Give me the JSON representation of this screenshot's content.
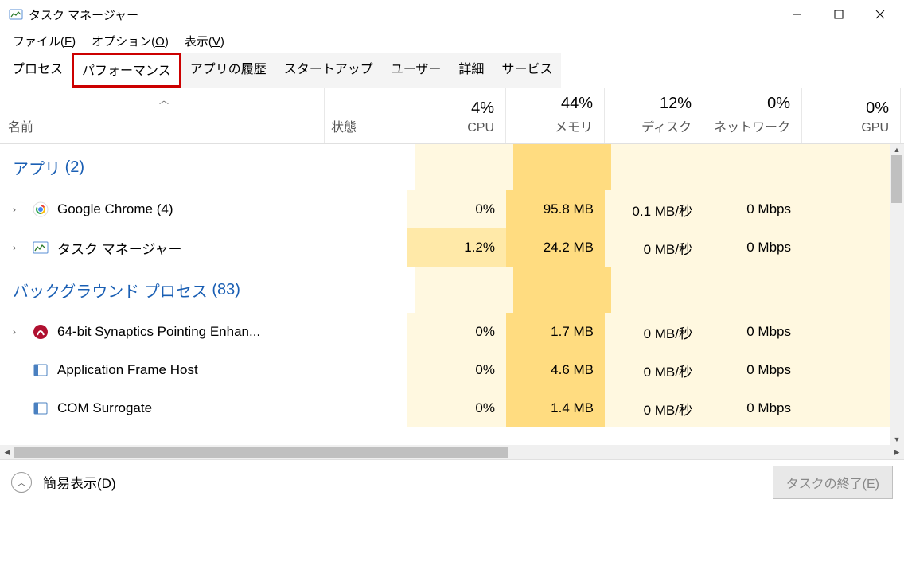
{
  "window": {
    "title": "タスク マネージャー"
  },
  "menu": {
    "file": "ファイル(",
    "file_u": "F",
    "file_end": ")",
    "options": "オプション(",
    "options_u": "O",
    "options_end": ")",
    "view": "表示(",
    "view_u": "V",
    "view_end": ")"
  },
  "tabs": {
    "items": [
      {
        "label": "プロセス",
        "active": true
      },
      {
        "label": "パフォーマンス",
        "highlighted": true
      },
      {
        "label": "アプリの履歴"
      },
      {
        "label": "スタートアップ"
      },
      {
        "label": "ユーザー"
      },
      {
        "label": "詳細"
      },
      {
        "label": "サービス"
      }
    ]
  },
  "columns": {
    "name": "名前",
    "status": "状態",
    "metrics": [
      {
        "pct": "4%",
        "label": "CPU"
      },
      {
        "pct": "44%",
        "label": "メモリ"
      },
      {
        "pct": "12%",
        "label": "ディスク"
      },
      {
        "pct": "0%",
        "label": "ネットワーク"
      },
      {
        "pct": "0%",
        "label": "GPU"
      }
    ]
  },
  "groups": [
    {
      "title": "アプリ",
      "count": "(2)",
      "rows": [
        {
          "expandable": true,
          "icon": "chrome",
          "name": "Google Chrome (4)",
          "metrics": [
            {
              "v": "0%",
              "heat": "heat-low"
            },
            {
              "v": "95.8 MB",
              "heat": "heat-high"
            },
            {
              "v": "0.1 MB/秒",
              "heat": "heat-low"
            },
            {
              "v": "0 Mbps",
              "heat": "heat-low"
            },
            {
              "v": "",
              "heat": "heat-low"
            }
          ]
        },
        {
          "expandable": true,
          "icon": "taskmgr",
          "name": "タスク マネージャー",
          "metrics": [
            {
              "v": "1.2%",
              "heat": "heat-med"
            },
            {
              "v": "24.2 MB",
              "heat": "heat-high"
            },
            {
              "v": "0 MB/秒",
              "heat": "heat-low"
            },
            {
              "v": "0 Mbps",
              "heat": "heat-low"
            },
            {
              "v": "",
              "heat": "heat-low"
            }
          ]
        }
      ]
    },
    {
      "title": "バックグラウンド プロセス",
      "count": "(83)",
      "rows": [
        {
          "expandable": true,
          "icon": "synaptics",
          "name": "64-bit Synaptics Pointing Enhan...",
          "metrics": [
            {
              "v": "0%",
              "heat": "heat-low"
            },
            {
              "v": "1.7 MB",
              "heat": "heat-high"
            },
            {
              "v": "0 MB/秒",
              "heat": "heat-low"
            },
            {
              "v": "0 Mbps",
              "heat": "heat-low"
            },
            {
              "v": "",
              "heat": "heat-low"
            }
          ]
        },
        {
          "expandable": false,
          "icon": "generic",
          "name": "Application Frame Host",
          "metrics": [
            {
              "v": "0%",
              "heat": "heat-low"
            },
            {
              "v": "4.6 MB",
              "heat": "heat-high"
            },
            {
              "v": "0 MB/秒",
              "heat": "heat-low"
            },
            {
              "v": "0 Mbps",
              "heat": "heat-low"
            },
            {
              "v": "",
              "heat": "heat-low"
            }
          ]
        },
        {
          "expandable": false,
          "icon": "generic",
          "name": "COM Surrogate",
          "metrics": [
            {
              "v": "0%",
              "heat": "heat-low"
            },
            {
              "v": "1.4 MB",
              "heat": "heat-high"
            },
            {
              "v": "0 MB/秒",
              "heat": "heat-low"
            },
            {
              "v": "0 Mbps",
              "heat": "heat-low"
            },
            {
              "v": "",
              "heat": "heat-low"
            }
          ]
        }
      ]
    }
  ],
  "footer": {
    "simple_view": "簡易表示(",
    "simple_view_u": "D",
    "simple_view_end": ")",
    "end_task": "タスクの終了(",
    "end_task_u": "E",
    "end_task_end": ")"
  },
  "colors": {
    "highlight_border": "#cc0000",
    "heat_low": "#fff8e0",
    "heat_med": "#ffe9a8",
    "heat_high": "#ffdc80",
    "group_text": "#1a5fb4"
  }
}
